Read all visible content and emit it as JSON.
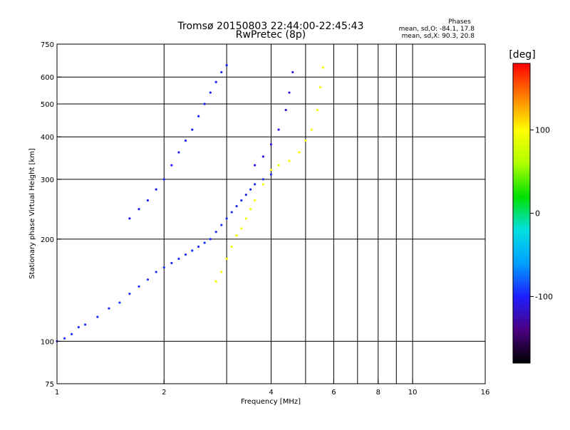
{
  "chart_data": {
    "type": "scatter",
    "title": "Tromsø 20150803 22:44:00-22:45:43",
    "subtitle": "RwPretec (8p)",
    "xlabel": "Frequency [MHz]",
    "ylabel": "Stationary phase Virtual Height [km]",
    "x_scale": "log",
    "y_scale": "log",
    "xlim": [
      1,
      16
    ],
    "ylim": [
      75,
      750
    ],
    "x_ticks": [
      1,
      2,
      4,
      6,
      8,
      10,
      16
    ],
    "x_tick_labels": [
      "1",
      "2",
      "4",
      "6",
      "8",
      "10",
      "16"
    ],
    "x_grid": [
      2,
      3,
      4,
      5,
      6,
      7,
      8,
      9,
      10
    ],
    "y_ticks": [
      75,
      100,
      200,
      300,
      400,
      500,
      600,
      750
    ],
    "y_tick_labels": [
      "75",
      "100",
      "200",
      "300",
      "400",
      "500",
      "600",
      "750"
    ],
    "y_grid": [
      100,
      200,
      300,
      400,
      500,
      600
    ],
    "grid": true,
    "phase_stats": {
      "header": "Phases",
      "line_o": "mean, sd,O: -84.1, 17.8",
      "line_x": "mean, sd,X:  90.3, 20.8"
    },
    "colorbar": {
      "label": "[deg]",
      "range": [
        -180,
        180
      ],
      "ticks": [
        100,
        0,
        -100
      ],
      "tick_labels": [
        "100",
        "0",
        "-100"
      ],
      "colors": [
        "#000000",
        "#4b0082",
        "#1e1eff",
        "#00a0ff",
        "#00e0e0",
        "#00e000",
        "#b0ff00",
        "#ffff00",
        "#ff8000",
        "#ff0000"
      ]
    },
    "series": [
      {
        "role": "O-mode E/F1 cluster",
        "color_value": -95,
        "x": [
          1.0,
          1.05,
          1.1,
          1.15,
          1.2,
          1.3,
          1.4,
          1.5,
          1.6,
          1.7,
          1.8,
          1.9,
          2.0,
          2.1,
          2.2,
          2.3,
          2.4,
          2.5,
          2.6,
          2.7,
          2.8,
          2.9,
          3.0,
          3.1,
          3.2,
          3.3,
          3.4,
          3.5,
          3.6,
          3.8,
          4.0
        ],
        "y": [
          100,
          102,
          105,
          110,
          112,
          118,
          125,
          130,
          138,
          145,
          152,
          160,
          165,
          170,
          175,
          180,
          185,
          190,
          195,
          200,
          210,
          220,
          230,
          240,
          250,
          260,
          270,
          280,
          290,
          300,
          310
        ]
      },
      {
        "role": "O-mode F2 trace",
        "color_value": -100,
        "x": [
          1.6,
          1.7,
          1.8,
          1.9,
          2.0,
          2.1,
          2.2,
          2.3,
          2.4,
          2.5,
          2.6,
          2.7,
          2.8,
          2.9,
          3.0
        ],
        "y": [
          230,
          245,
          260,
          280,
          300,
          330,
          360,
          390,
          420,
          460,
          500,
          540,
          580,
          620,
          650
        ]
      },
      {
        "role": "X-mode trace",
        "color_value": 95,
        "x": [
          2.8,
          2.9,
          3.0,
          3.1,
          3.2,
          3.3,
          3.4,
          3.5,
          3.6,
          3.8,
          4.0,
          4.2,
          4.5,
          4.8,
          5.0,
          5.2,
          5.4,
          5.5,
          5.6
        ],
        "y": [
          150,
          160,
          175,
          190,
          205,
          215,
          230,
          245,
          260,
          290,
          320,
          330,
          340,
          360,
          390,
          420,
          480,
          560,
          640
        ]
      },
      {
        "role": "O-mode upper trace",
        "color_value": -110,
        "x": [
          3.6,
          3.8,
          4.0,
          4.2,
          4.4,
          4.5,
          4.6
        ],
        "y": [
          330,
          350,
          380,
          420,
          480,
          540,
          620
        ]
      }
    ]
  }
}
